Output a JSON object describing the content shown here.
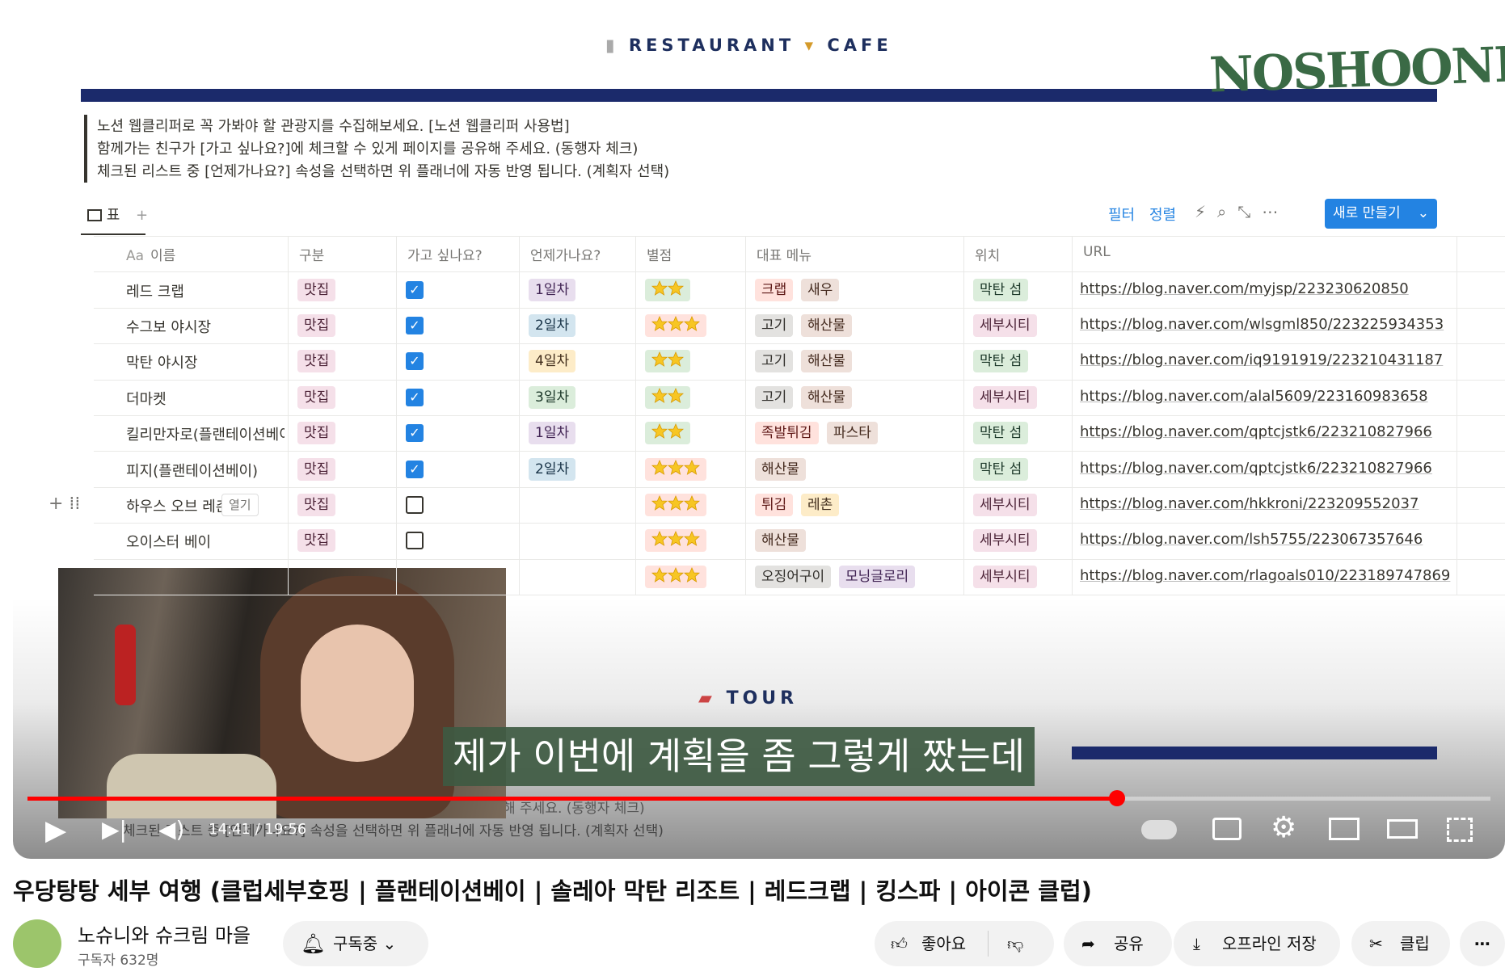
{
  "notion": {
    "header": {
      "left": "RESTAURANT",
      "right": "CAFE"
    },
    "logo": "NOSHOONI",
    "notes": [
      "노션 웹클리퍼로 꼭 가봐야 할 관광지를 수집해보세요. [노션 웹클리퍼 사용법]",
      "함께가는 친구가 [가고 싶나요?]에 체크할 수 있게 페이지를 공유해 주세요. (동행자 체크)",
      "체크된 리스트 중 [언제가나요?] 속성을 선택하면 위 플래너에 자동 반영 됩니다. (계획자 선택)"
    ],
    "view": "표",
    "actions": {
      "filter": "필터",
      "sort": "정렬",
      "new": "새로 만들기"
    },
    "name_icon": "Aa",
    "columns": [
      "이름",
      "구분",
      "가고 싶나요?",
      "언제가나요?",
      "별점",
      "대표 메뉴",
      "위치",
      "URL"
    ],
    "rows": [
      {
        "name": "레드 크랩",
        "type": "맛집",
        "want": true,
        "day": "1일차",
        "day_color": "purple",
        "stars": 2,
        "stars_color": "green",
        "menu": [
          {
            "text": "크랩",
            "color": "red"
          },
          {
            "text": "새우",
            "color": "brown"
          }
        ],
        "location": "막탄 섬",
        "location_color": "green",
        "url": "https://blog.naver.com/myjsp/223230620850"
      },
      {
        "name": "수그보 야시장",
        "type": "맛집",
        "want": true,
        "day": "2일차",
        "day_color": "blue",
        "stars": 3,
        "stars_color": "red",
        "menu": [
          {
            "text": "고기",
            "color": "gray"
          },
          {
            "text": "해산물",
            "color": "brown"
          }
        ],
        "location": "세부시티",
        "location_color": "pink",
        "url": "https://blog.naver.com/wlsgml850/223225934353"
      },
      {
        "name": "막탄 야시장",
        "type": "맛집",
        "want": true,
        "day": "4일차",
        "day_color": "yellow",
        "stars": 2,
        "stars_color": "green",
        "menu": [
          {
            "text": "고기",
            "color": "gray"
          },
          {
            "text": "해산물",
            "color": "brown"
          }
        ],
        "location": "막탄 섬",
        "location_color": "green",
        "url": "https://blog.naver.com/iq9191919/223210431187"
      },
      {
        "name": "더마켓",
        "type": "맛집",
        "want": true,
        "day": "3일차",
        "day_color": "green",
        "stars": 2,
        "stars_color": "green",
        "menu": [
          {
            "text": "고기",
            "color": "gray"
          },
          {
            "text": "해산물",
            "color": "brown"
          }
        ],
        "location": "세부시티",
        "location_color": "pink",
        "url": "https://blog.naver.com/alal5609/223160983658"
      },
      {
        "name": "킬리만자로(플랜테이션베이)",
        "type": "맛집",
        "want": true,
        "day": "1일차",
        "day_color": "purple",
        "stars": 2,
        "stars_color": "green",
        "menu": [
          {
            "text": "족발튀김",
            "color": "red"
          },
          {
            "text": "파스타",
            "color": "brown"
          }
        ],
        "location": "막탄 섬",
        "location_color": "green",
        "url": "https://blog.naver.com/qptcjstk6/223210827966"
      },
      {
        "name": "피지(플랜테이션베이)",
        "type": "맛집",
        "want": true,
        "day": "2일차",
        "day_color": "blue",
        "stars": 3,
        "stars_color": "red",
        "menu": [
          {
            "text": "해산물",
            "color": "brown"
          }
        ],
        "location": "막탄 섬",
        "location_color": "green",
        "url": "https://blog.naver.com/qptcjstk6/223210827966"
      },
      {
        "name": "하우스 오브 레촌",
        "type": "맛집",
        "want": false,
        "day": null,
        "day_color": null,
        "stars": 3,
        "stars_color": "red",
        "menu": [
          {
            "text": "튀김",
            "color": "red"
          },
          {
            "text": "레촌",
            "color": "yellow"
          }
        ],
        "location": "세부시티",
        "location_color": "pink",
        "url": "https://blog.naver.com/hkkroni/223209552037"
      },
      {
        "name": "오이스터 베이",
        "type": "맛집",
        "want": false,
        "day": null,
        "day_color": null,
        "stars": 3,
        "stars_color": "red",
        "menu": [
          {
            "text": "해산물",
            "color": "brown"
          }
        ],
        "location": "세부시티",
        "location_color": "pink",
        "url": "https://blog.naver.com/lsh5755/223067357646"
      },
      {
        "name": null,
        "type": null,
        "want": null,
        "day": null,
        "day_color": null,
        "stars": 3,
        "stars_color": "red",
        "menu": [
          {
            "text": "오징어구이",
            "color": "gray"
          },
          {
            "text": "모닝글로리",
            "color": "purple"
          }
        ],
        "location": "세부시티",
        "location_color": "pink",
        "url": "https://blog.naver.com/rlagoals010/223189747869"
      }
    ],
    "hover_action": "열기",
    "tour": "TOUR",
    "tour_notes": [
      "해 주세요. (동행자 체크)",
      "체크된 리스트 중 [언제가나요?] 속성을 선택하면 위 플래너에 자동 반영 됩니다. (계획자 선택)"
    ]
  },
  "player": {
    "subtitle": "제가 이번에 계획을 좀 그렇게 짰는데",
    "time": "14:41 / 19:56"
  },
  "video": {
    "title": "우당탕탕 세부 여행 (클럽세부호핑 | 플랜테이션베이 | 솔레아 막탄 리조트 | 레드크랩 | 킹스파 | 아이콘 클럽)",
    "channel": "노슈니와 슈크림 마을",
    "subscribers": "구독자 632명",
    "subscribe": "구독중",
    "like": "좋아요",
    "share": "공유",
    "download": "오프라인 저장",
    "clip": "클립"
  }
}
